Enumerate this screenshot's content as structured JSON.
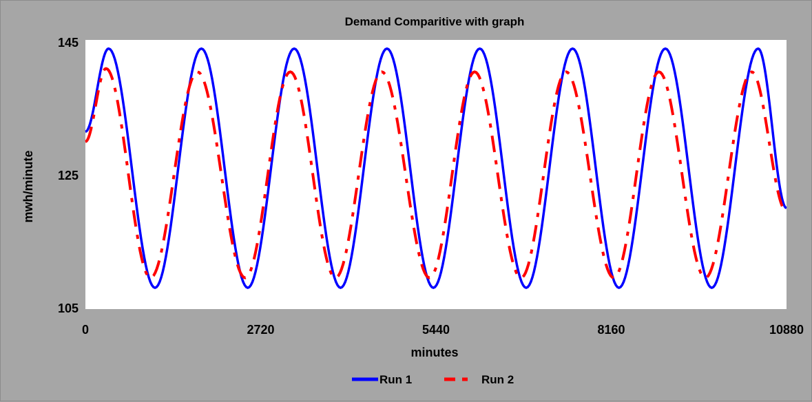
{
  "chart_data": {
    "type": "line",
    "title": "Demand Comparitive with graph",
    "xlabel": "minutes",
    "ylabel": "mwh/minute",
    "xlim": [
      0,
      10880
    ],
    "ylim": [
      105,
      145
    ],
    "xticks": [
      "0",
      "2720",
      "5440",
      "8160",
      "10880"
    ],
    "yticks": [
      "105",
      "125",
      "145"
    ],
    "grid": false,
    "legend_position": "bottom-center",
    "series": [
      {
        "name": "Run 1",
        "color": "#0000ff",
        "style": "solid",
        "x": [
          0,
          360,
          1080,
          1800,
          2520,
          3240,
          3960,
          4680,
          5400,
          6120,
          6840,
          7560,
          8280,
          9000,
          9720,
          10440,
          10880
        ],
        "y": [
          131.5,
          144,
          108,
          144,
          108,
          144,
          108,
          144,
          108,
          144,
          108,
          144,
          108,
          144,
          108,
          144,
          120
        ]
      },
      {
        "name": "Run 2",
        "color": "#ff0000",
        "style": "dashed",
        "x": [
          0,
          320,
          1010,
          1740,
          2480,
          3180,
          3880,
          4600,
          5340,
          6040,
          6760,
          7460,
          8200,
          8900,
          9620,
          10340,
          10880
        ],
        "y": [
          130,
          141,
          109.5,
          140.5,
          109.5,
          140.5,
          109.5,
          140.5,
          109.5,
          140.5,
          109.5,
          140.5,
          109.5,
          140.5,
          109.5,
          140.5,
          119.5
        ]
      }
    ]
  }
}
